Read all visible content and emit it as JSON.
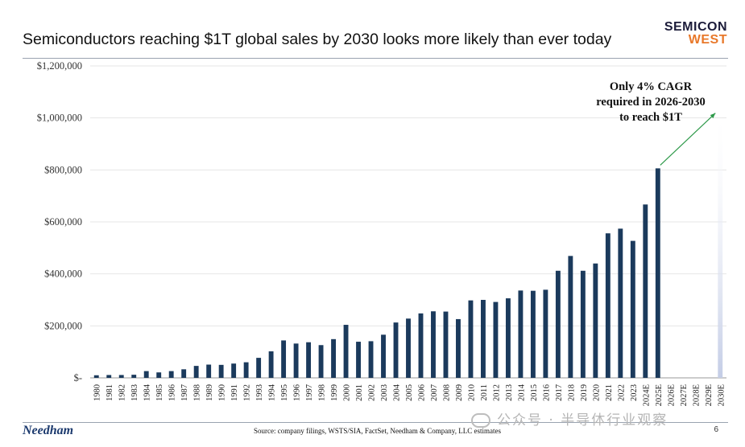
{
  "slide": {
    "title": "Semiconductors reaching $1T global sales by 2030 looks more likely than ever today",
    "logo_line1": "SEMICON",
    "logo_line2": "WEST",
    "source": "Source: company filings, WSTS/SIA, FactSet, Needham & Company, LLC estimates",
    "company": "Needham",
    "page_number": "6",
    "watermark": "公众号 · 半导体行业观察"
  },
  "colors": {
    "bar": "#1b3a5c",
    "arrow": "#2e9a4a",
    "projection_bar": "#c4cde6",
    "grid": "#e6e6e6"
  },
  "chart_data": {
    "type": "bar",
    "title": "Semiconductors reaching $1T global sales by 2030 looks more likely than ever today",
    "xlabel": "",
    "ylabel": "",
    "ylim": [
      0,
      1200000
    ],
    "yticks": [
      0,
      200000,
      400000,
      600000,
      800000,
      1000000,
      1200000
    ],
    "ytick_labels": [
      "$-",
      "$200,000",
      "$400,000",
      "$600,000",
      "$800,000",
      "$1,000,000",
      "$1,200,000"
    ],
    "grid": true,
    "categories": [
      "1980",
      "1981",
      "1982",
      "1983",
      "1984",
      "1985",
      "1986",
      "1987",
      "1988",
      "1989",
      "1990",
      "1991",
      "1992",
      "1993",
      "1994",
      "1995",
      "1996",
      "1997",
      "1998",
      "1999",
      "2000",
      "2001",
      "2002",
      "2003",
      "2004",
      "2005",
      "2006",
      "2007",
      "2008",
      "2009",
      "2010",
      "2011",
      "2012",
      "2013",
      "2014",
      "2015",
      "2016",
      "2017",
      "2018",
      "2019",
      "2020",
      "2021",
      "2022",
      "2023",
      "2024E",
      "2025E",
      "2026E",
      "2027E",
      "2028E",
      "2029E",
      "2030E"
    ],
    "values": [
      10000,
      11000,
      11000,
      12000,
      26000,
      21000,
      26000,
      33000,
      46000,
      51000,
      50000,
      55000,
      60000,
      77000,
      102000,
      144000,
      132000,
      137000,
      126000,
      149000,
      204000,
      139000,
      141000,
      166000,
      213000,
      228000,
      248000,
      256000,
      255000,
      226000,
      298000,
      300000,
      292000,
      306000,
      336000,
      335000,
      339000,
      412000,
      469000,
      412000,
      440000,
      556000,
      574000,
      527000,
      667000,
      806000,
      null,
      null,
      null,
      null,
      null
    ],
    "projection": {
      "category": "2030E",
      "value": 1000000
    },
    "annotation": "Only 4% CAGR\nrequired in 2026-2030\nto reach $1T"
  }
}
